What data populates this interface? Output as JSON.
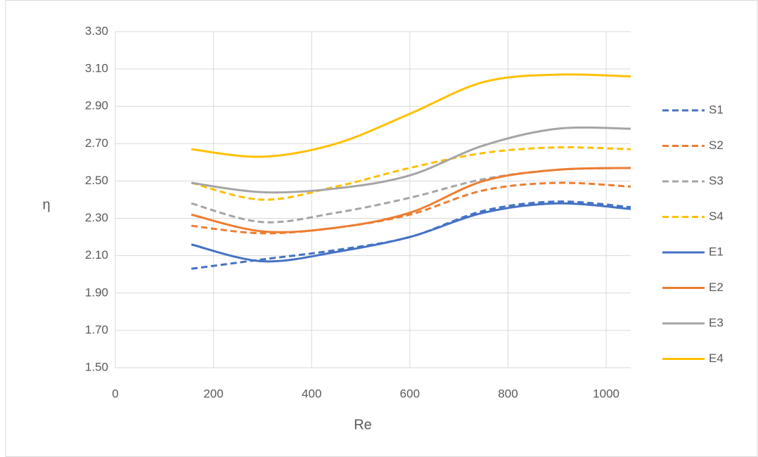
{
  "chart_data": {
    "type": "line",
    "x_label": "Re",
    "y_label": "η",
    "x": [
      155,
      300,
      450,
      600,
      750,
      900,
      1050
    ],
    "xlim": [
      0,
      1050
    ],
    "xticks": [
      0,
      200,
      400,
      600,
      800,
      1000
    ],
    "ylim": [
      1.5,
      3.3
    ],
    "yticks": [
      {
        "value": 1.5,
        "label": "1.50"
      },
      {
        "value": 1.7,
        "label": "1.70"
      },
      {
        "value": 1.9,
        "label": "1.90"
      },
      {
        "value": 2.1,
        "label": "2.10"
      },
      {
        "value": 2.3,
        "label": "2.30"
      },
      {
        "value": 2.5,
        "label": "2.50"
      },
      {
        "value": 2.7,
        "label": "2.70"
      },
      {
        "value": 2.9,
        "label": "2.90"
      },
      {
        "value": 3.1,
        "label": "3.10"
      },
      {
        "value": 3.3,
        "label": "3.30"
      }
    ],
    "grid": true,
    "legend": "right",
    "series": [
      {
        "name": "S1",
        "color": "#4472c4",
        "dashed": true,
        "values": [
          2.03,
          2.08,
          2.13,
          2.2,
          2.34,
          2.39,
          2.36
        ]
      },
      {
        "name": "S2",
        "color": "#ed7d31",
        "dashed": true,
        "values": [
          2.26,
          2.22,
          2.25,
          2.32,
          2.45,
          2.49,
          2.47
        ]
      },
      {
        "name": "S3",
        "color": "#a5a5a5",
        "dashed": true,
        "values": [
          2.38,
          2.28,
          2.33,
          2.41,
          2.51,
          2.56,
          2.57
        ]
      },
      {
        "name": "S4",
        "color": "#ffc000",
        "dashed": true,
        "values": [
          2.49,
          2.4,
          2.47,
          2.57,
          2.65,
          2.68,
          2.67
        ]
      },
      {
        "name": "E1",
        "color": "#4472c4",
        "dashed": false,
        "values": [
          2.16,
          2.07,
          2.12,
          2.2,
          2.33,
          2.38,
          2.35
        ]
      },
      {
        "name": "E2",
        "color": "#ed7d31",
        "dashed": false,
        "values": [
          2.32,
          2.23,
          2.25,
          2.33,
          2.5,
          2.56,
          2.57
        ]
      },
      {
        "name": "E3",
        "color": "#a5a5a5",
        "dashed": false,
        "values": [
          2.49,
          2.44,
          2.46,
          2.53,
          2.69,
          2.78,
          2.78
        ]
      },
      {
        "name": "E4",
        "color": "#ffc000",
        "dashed": false,
        "values": [
          2.67,
          2.63,
          2.7,
          2.86,
          3.03,
          3.07,
          3.06
        ]
      }
    ]
  }
}
